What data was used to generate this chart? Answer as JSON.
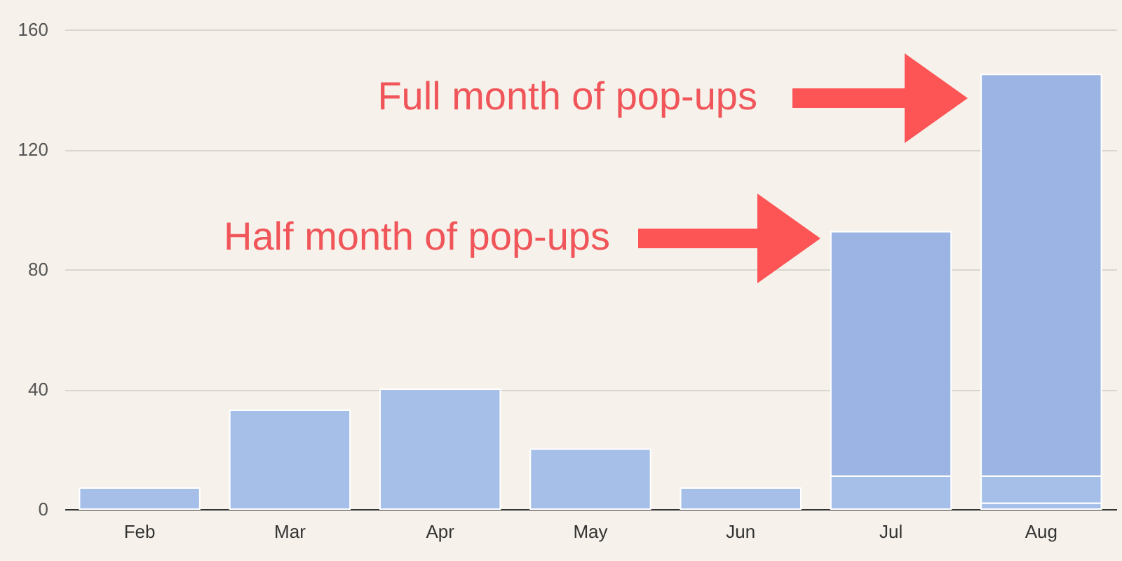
{
  "chart_data": {
    "type": "bar",
    "stacked": true,
    "categories": [
      "Feb",
      "Mar",
      "Apr",
      "May",
      "Jun",
      "Jul",
      "Aug"
    ],
    "series": [
      {
        "color": "#a6bfe8",
        "values": [
          7,
          33,
          40,
          20,
          7,
          11,
          2
        ]
      },
      {
        "color": "#a6bfe8",
        "values": [
          null,
          null,
          null,
          null,
          null,
          null,
          9
        ]
      },
      {
        "color": "#9bb4e3",
        "values": [
          null,
          null,
          null,
          null,
          null,
          81.5,
          134
        ]
      }
    ],
    "ylim": [
      0,
      160
    ],
    "yticks": [
      0,
      40,
      80,
      120,
      160
    ],
    "grid": "y",
    "legend": false,
    "annotations": [
      "Full month of pop-ups",
      "Half month of pop-ups"
    ]
  }
}
